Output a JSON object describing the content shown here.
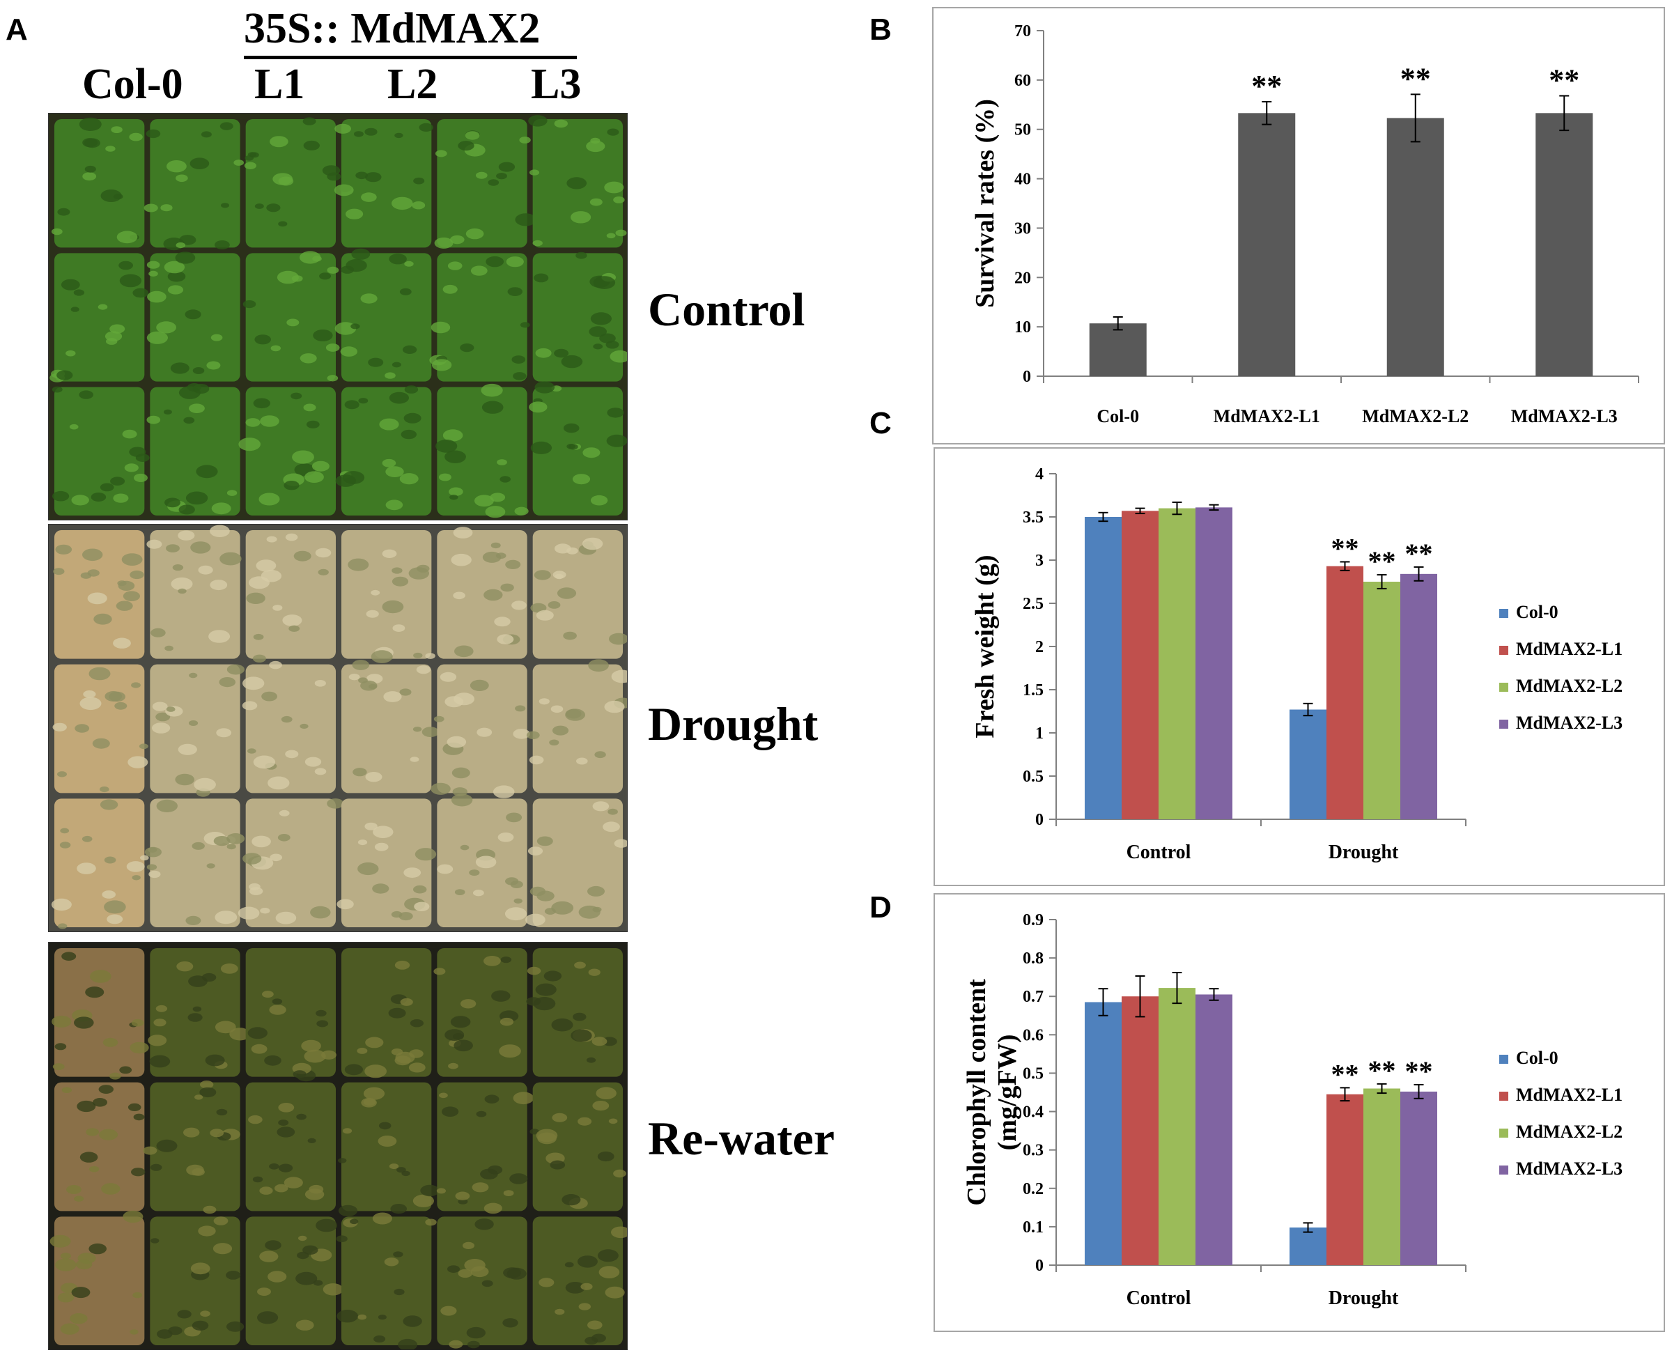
{
  "panel_letters": {
    "a": "A",
    "b": "B",
    "c": "C",
    "d": "D"
  },
  "photo_panel": {
    "title": "35S:: MdMAX2",
    "columns": [
      "Col-0",
      "L1",
      "L2",
      "L3"
    ],
    "rows": [
      {
        "label": "Control",
        "scheme": "control"
      },
      {
        "label": "Drought",
        "scheme": "drought"
      },
      {
        "label": "Re-water",
        "scheme": "rewater"
      }
    ],
    "colors": {
      "control": {
        "tray": "#2b2f1a",
        "base": "#3f7a24",
        "light": "#63a83a",
        "dark": "#2c5a18"
      },
      "drought": {
        "tray": "#4a4a44",
        "base": "#b9ad86",
        "light": "#d6cba6",
        "dark": "#8e8f62"
      },
      "rewater": {
        "tray": "#1f1f18",
        "base": "#4d5a23",
        "light": "#7a7a3a",
        "dark": "#34401a"
      }
    }
  },
  "chart_data": [
    {
      "id": "B",
      "type": "bar",
      "ylabel": "Survival  rates (%)",
      "ylim": [
        0,
        70
      ],
      "yticks": [
        0,
        10,
        20,
        30,
        40,
        50,
        60,
        70
      ],
      "categories": [
        "Col-0",
        "MdMAX2-L1",
        "MdMAX2-L2",
        "MdMAX2-L3"
      ],
      "values": [
        10.7,
        53.3,
        52.3,
        53.3
      ],
      "errors": [
        1.3,
        2.3,
        4.8,
        3.5
      ],
      "significance": [
        "",
        "**",
        "**",
        "**"
      ],
      "bar_color": "#595959"
    },
    {
      "id": "C",
      "type": "bar",
      "ylabel": "Fresh  weight (g)",
      "ylim": [
        0,
        4
      ],
      "yticks": [
        0,
        0.5,
        1,
        1.5,
        2,
        2.5,
        3,
        3.5,
        4
      ],
      "categories": [
        "Control",
        "Drought"
      ],
      "series": [
        {
          "name": "Col-0",
          "color": "#4f81bd",
          "values": [
            3.5,
            1.27
          ],
          "errors": [
            0.05,
            0.07
          ],
          "significance": [
            "",
            ""
          ]
        },
        {
          "name": "MdMAX2-L1",
          "color": "#c0504d",
          "values": [
            3.57,
            2.93
          ],
          "errors": [
            0.03,
            0.05
          ],
          "significance": [
            "",
            "**"
          ]
        },
        {
          "name": "MdMAX2-L2",
          "color": "#9bbb59",
          "values": [
            3.6,
            2.75
          ],
          "errors": [
            0.07,
            0.08
          ],
          "significance": [
            "",
            "**"
          ]
        },
        {
          "name": "MdMAX2-L3",
          "color": "#8064a2",
          "values": [
            3.61,
            2.84
          ],
          "errors": [
            0.03,
            0.08
          ],
          "significance": [
            "",
            "**"
          ]
        }
      ]
    },
    {
      "id": "D",
      "type": "bar",
      "ylabel_lines": [
        "Chlorophyll content",
        "(mg/gFW)"
      ],
      "ylim": [
        0,
        0.9
      ],
      "yticks": [
        0,
        0.1,
        0.2,
        0.3,
        0.4,
        0.5,
        0.6,
        0.7,
        0.8,
        0.9
      ],
      "categories": [
        "Control",
        "Drought"
      ],
      "series": [
        {
          "name": "Col-0",
          "color": "#4f81bd",
          "values": [
            0.685,
            0.098
          ],
          "errors": [
            0.035,
            0.012
          ],
          "significance": [
            "",
            ""
          ]
        },
        {
          "name": "MdMAX2-L1",
          "color": "#c0504d",
          "values": [
            0.7,
            0.445
          ],
          "errors": [
            0.053,
            0.017
          ],
          "significance": [
            "",
            "**"
          ]
        },
        {
          "name": "MdMAX2-L2",
          "color": "#9bbb59",
          "values": [
            0.722,
            0.46
          ],
          "errors": [
            0.04,
            0.012
          ],
          "significance": [
            "",
            "**"
          ]
        },
        {
          "name": "MdMAX2-L3",
          "color": "#8064a2",
          "values": [
            0.705,
            0.452
          ],
          "errors": [
            0.015,
            0.018
          ],
          "significance": [
            "",
            "**"
          ]
        }
      ]
    }
  ]
}
